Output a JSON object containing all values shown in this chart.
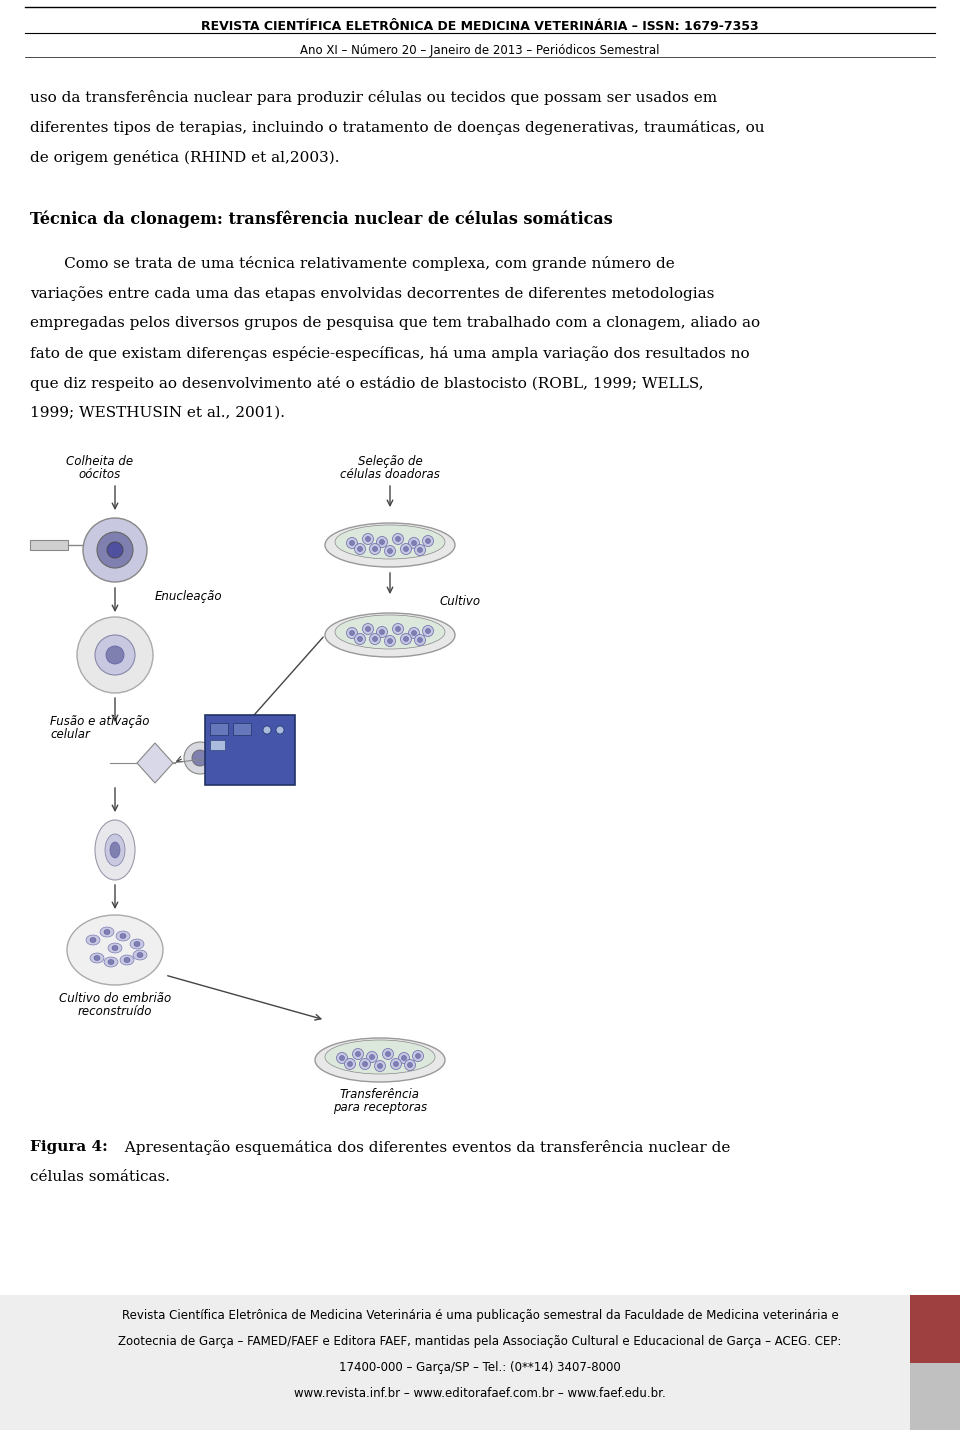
{
  "header_title": "REVISTA CIENTÍFICA ELETRÔNICA DE MEDICINA VETERINÁRIA – ISSN: 1679-7353",
  "header_subtitle": "Ano XI – Número 20 – Janeiro de 2013 – Periódicos Semestral",
  "body_line1": "uso da transferência nuclear para produzir células ou tecidos que possam ser usados em",
  "body_line2": "diferentes tipos de terapias, incluindo o tratamento de doenças degenerativas, traumáticas, ou",
  "body_line3": "de origem genética (RHIND et al,2003).",
  "section_title": "Técnica da clonagem: transfêrencia nuclear de células somáticas",
  "para_line1": "       Como se trata de uma técnica relativamente complexa, com grande número de",
  "para_line2": "variações entre cada uma das etapas envolvidas decorrentes de diferentes metodologias",
  "para_line3": "empregadas pelos diversos grupos de pesquisa que tem trabalhado com a clonagem, aliado ao",
  "para_line4": "fato de que existam diferenças espécie-específicas, há uma ampla variação dos resultados no",
  "para_line5": "que diz respeito ao desenvolvimento até o estádio de blastocisto (ROBL, 1999; WELLS,",
  "para_line6": "1999; WESTHUSIN et al., 2001).",
  "label_colheita1": "Colheita de",
  "label_colheita2": "oócitos",
  "label_enucleacao": "Enucleação",
  "label_fusao1": "Fusão e ativação",
  "label_fusao2": "celular",
  "label_cultivo_emb1": "Cultivo do embrião",
  "label_cultivo_emb2": "reconstruído",
  "label_selecao1": "Seleção de",
  "label_selecao2": "células doadoras",
  "label_cultivo": "Cultivo",
  "label_transferencia1": "Transferência",
  "label_transferencia2": "para receptoras",
  "figure_caption_bold": "Figura 4:",
  "figure_caption_rest": "  Apresentação esquemática dos diferentes eventos da transferência nuclear de",
  "figure_caption_line2": "células somáticas.",
  "footer_line1": "Revista Científica Eletrônica de Medicina Veterinária é uma publicação semestral da Faculdade de Medicina veterinária e",
  "footer_line2": "Zootecnia de Garça – FAMED/FAEF e Editora FAEF, mantidas pela Associação Cultural e Educacional de Garça – ACEG. CEP:",
  "footer_line3": "17400-000 – Garça/SP – Tel.: (0**14) 3407-8000",
  "footer_line4": "www.revista.inf.br – www.editorafaef.com.br – www.faef.edu.br.",
  "red_box_color": "#9e4040",
  "gray_box_color": "#c0c0c0",
  "bg_color": "#ffffff",
  "text_color": "#000000",
  "footer_bg": "#efefef",
  "diag_purple_light": "#c8c8e0",
  "diag_purple_mid": "#8080b0",
  "diag_purple_dark": "#5050a0",
  "diag_blue_box": "#4455aa",
  "diag_gray_light": "#e0e0e0",
  "diag_tan": "#d8d0b8"
}
